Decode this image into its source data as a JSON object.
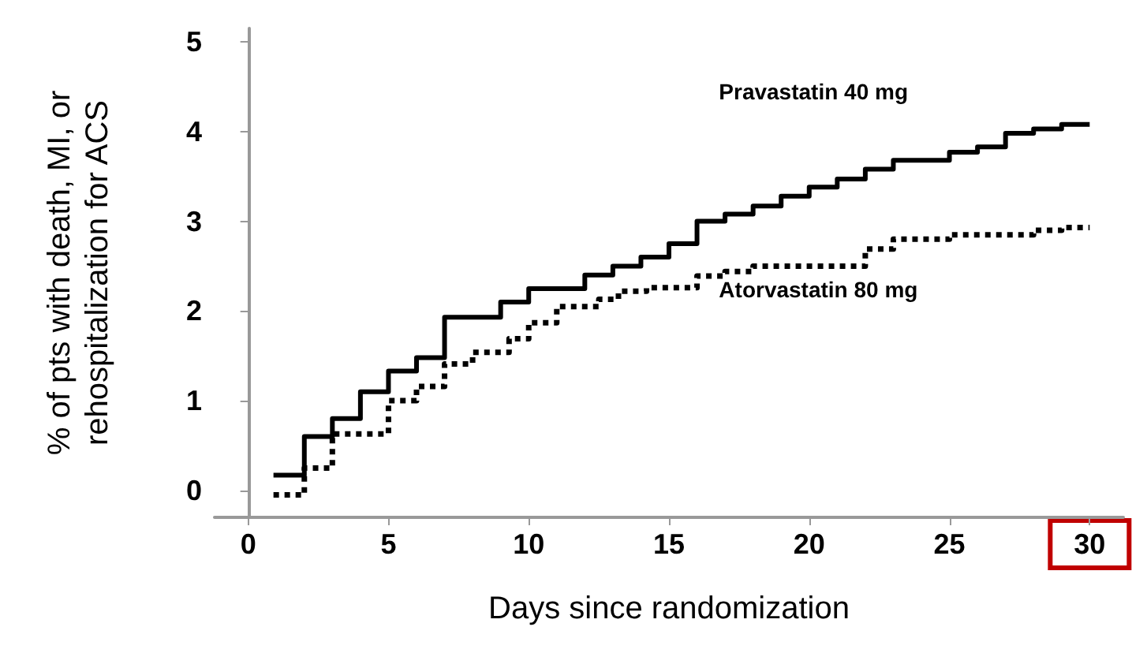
{
  "chart_data": {
    "type": "step",
    "xlabel": "Days since randomization",
    "ylabel": "% of pts with death, MI, or\nrehospitalization for ACS",
    "xlim": [
      -1.2,
      31.2
    ],
    "ylim": [
      -0.3,
      5.15
    ],
    "xticks": [
      0,
      5,
      10,
      15,
      20,
      25,
      30
    ],
    "yticks": [
      0,
      1,
      2,
      3,
      4,
      5
    ],
    "grid": false,
    "legend": false,
    "marker": "none",
    "series": [
      {
        "name": "Pravastatin 40 mg",
        "color": "#000000",
        "line_style": "solid",
        "x": [
          0.9,
          2,
          3,
          4,
          5,
          6,
          7,
          9,
          10,
          12,
          13,
          14,
          15,
          16,
          17,
          18,
          19,
          20,
          21,
          22,
          23,
          25,
          26,
          27,
          28,
          29,
          30
        ],
        "values": [
          0.17,
          0.6,
          0.8,
          1.1,
          1.33,
          1.48,
          1.93,
          2.1,
          2.25,
          2.4,
          2.5,
          2.6,
          2.75,
          3.0,
          3.08,
          3.17,
          3.28,
          3.38,
          3.47,
          3.58,
          3.68,
          3.77,
          3.83,
          3.98,
          4.03,
          4.08,
          4.08
        ]
      },
      {
        "name": "Atorvastatin 80 mg",
        "color": "#000000",
        "line_style": "dotted",
        "x": [
          0.9,
          2,
          3,
          5,
          6,
          7,
          8,
          9.3,
          10,
          11,
          12.5,
          13.2,
          14.2,
          16,
          17,
          18,
          22,
          23,
          25,
          28,
          29,
          30
        ],
        "values": [
          -0.05,
          0.25,
          0.63,
          1.0,
          1.16,
          1.41,
          1.54,
          1.69,
          1.87,
          2.05,
          2.13,
          2.22,
          2.26,
          2.39,
          2.44,
          2.5,
          2.69,
          2.8,
          2.85,
          2.9,
          2.93,
          2.93
        ]
      }
    ]
  }
}
